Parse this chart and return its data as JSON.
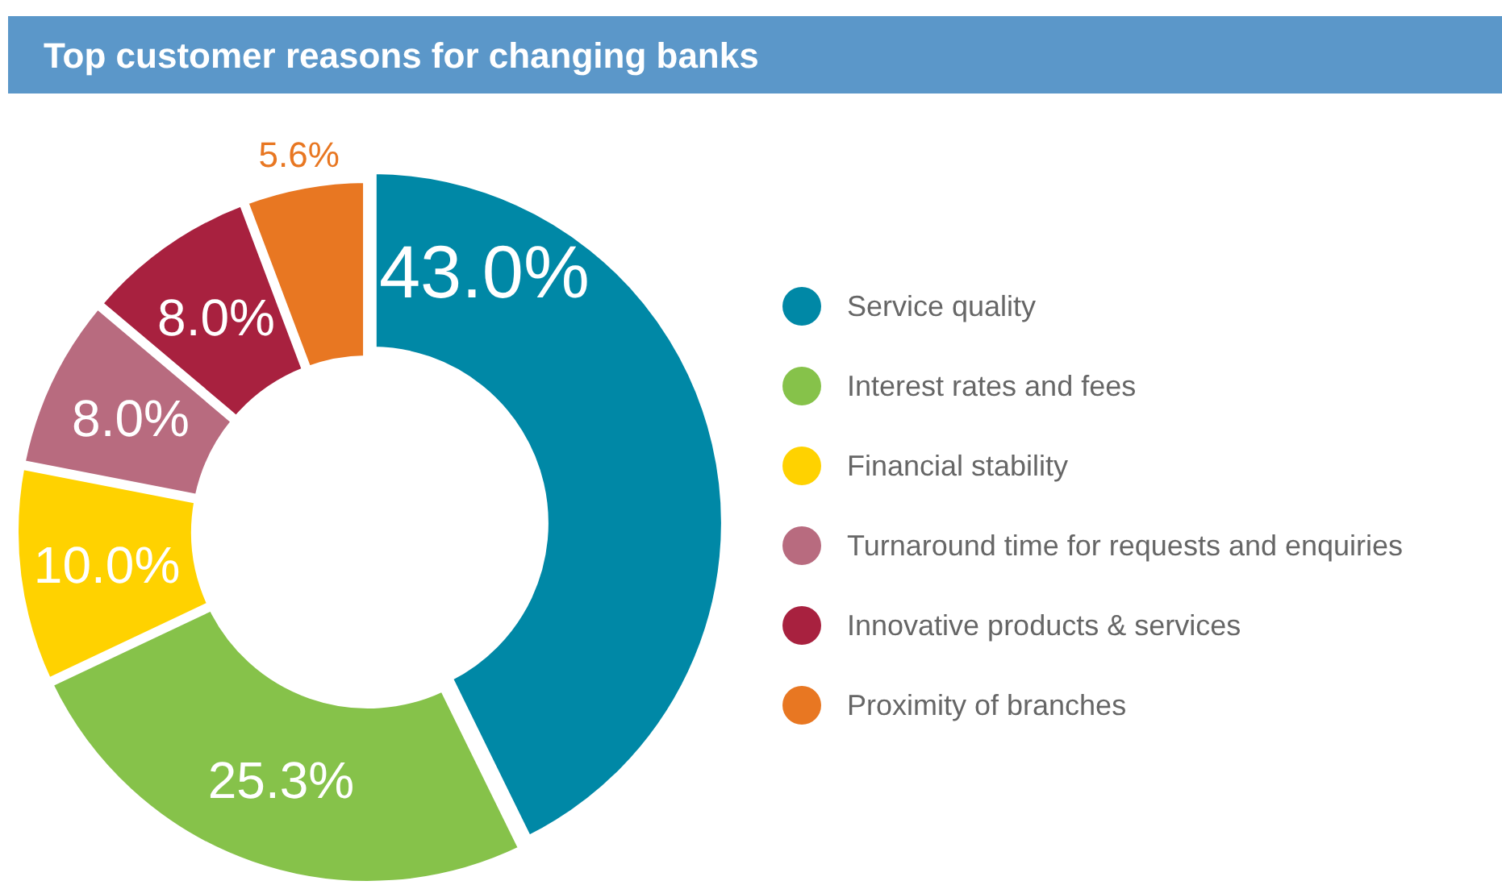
{
  "chart_data": {
    "type": "donut",
    "title": "Top customer reasons for changing banks",
    "categories": [
      "Service quality",
      "Interest rates and fees",
      "Financial stability",
      "Turnaround time for requests and enquiries",
      "Innovative products & services",
      "Proximity of branches"
    ],
    "values": [
      43.0,
      25.3,
      10.0,
      8.0,
      8.0,
      5.6
    ],
    "value_labels": [
      "43.0%",
      "25.3%",
      "10.0%",
      "8.0%",
      "8.0%",
      "5.6%"
    ],
    "colors": [
      "#0088a6",
      "#86c24a",
      "#ffd200",
      "#b86b7f",
      "#a8213f",
      "#e87722"
    ],
    "legend": "right"
  }
}
